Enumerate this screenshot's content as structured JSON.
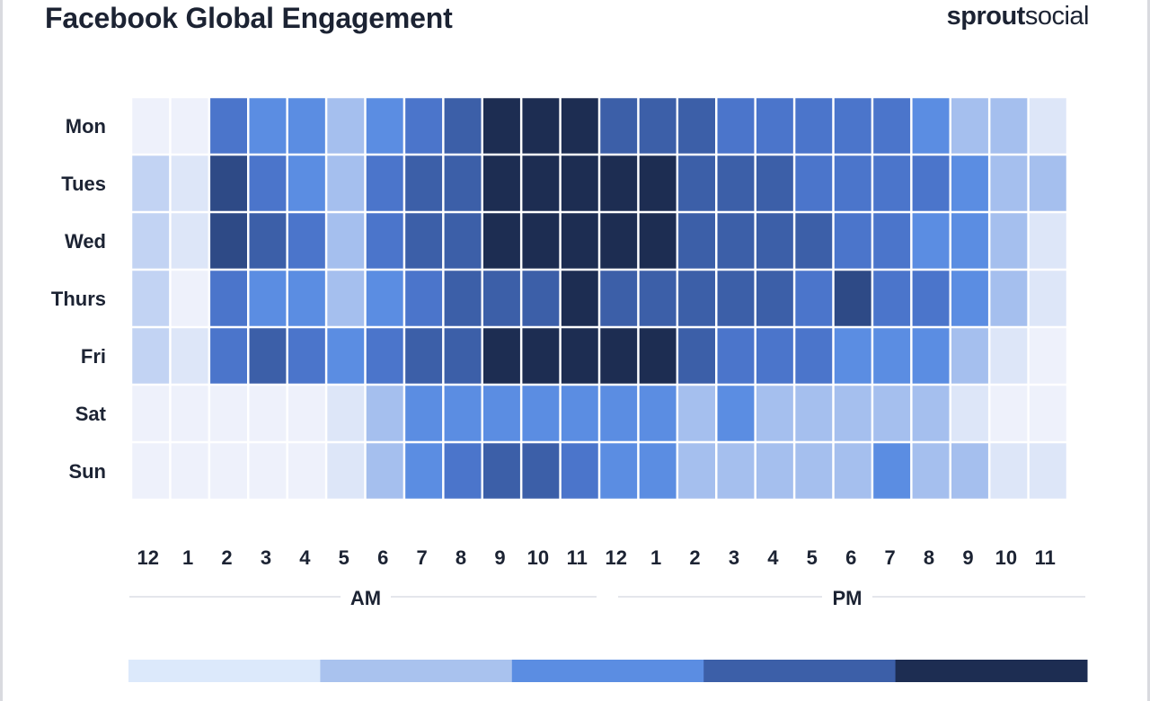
{
  "title": "Facebook Global Engagement",
  "brand": {
    "bold": "sprout",
    "light": "social"
  },
  "chart_data": {
    "type": "heatmap",
    "title": "Facebook Global Engagement",
    "rows": [
      "Mon",
      "Tues",
      "Wed",
      "Thurs",
      "Fri",
      "Sat",
      "Sun"
    ],
    "columns": [
      "12",
      "1",
      "2",
      "3",
      "4",
      "5",
      "6",
      "7",
      "8",
      "9",
      "10",
      "11",
      "12",
      "1",
      "2",
      "3",
      "4",
      "5",
      "6",
      "7",
      "8",
      "9",
      "10",
      "11"
    ],
    "periods": [
      {
        "label": "AM",
        "start": 0,
        "end": 11
      },
      {
        "label": "PM",
        "start": 12,
        "end": 23
      }
    ],
    "scale": {
      "min": 0,
      "max": 8,
      "note": "relative engagement level, light to dark"
    },
    "palette": [
      {
        "stop": 0,
        "color": "#eef1fb"
      },
      {
        "stop": 1,
        "color": "#dde6f8"
      },
      {
        "stop": 2,
        "color": "#c2d3f3"
      },
      {
        "stop": 3,
        "color": "#a5bfee"
      },
      {
        "stop": 4,
        "color": "#5b8de2"
      },
      {
        "stop": 5,
        "color": "#4b75cb"
      },
      {
        "stop": 6,
        "color": "#3c5fa8"
      },
      {
        "stop": 7,
        "color": "#2e4a86"
      },
      {
        "stop": 8,
        "color": "#1d2d52"
      }
    ],
    "values": [
      [
        0,
        0,
        5,
        4,
        4,
        3,
        4,
        5,
        6,
        8,
        8,
        8,
        6,
        6,
        6,
        5,
        5,
        5,
        5,
        5,
        4,
        3,
        3,
        1
      ],
      [
        2,
        1,
        7,
        5,
        4,
        3,
        5,
        6,
        6,
        8,
        8,
        8,
        8,
        8,
        6,
        6,
        6,
        5,
        5,
        5,
        5,
        4,
        3,
        3
      ],
      [
        2,
        1,
        7,
        6,
        5,
        3,
        5,
        6,
        6,
        8,
        8,
        8,
        8,
        8,
        6,
        6,
        6,
        6,
        5,
        5,
        4,
        4,
        3,
        1
      ],
      [
        2,
        0,
        5,
        4,
        4,
        3,
        4,
        5,
        6,
        6,
        6,
        8,
        6,
        6,
        6,
        6,
        6,
        5,
        7,
        5,
        5,
        4,
        3,
        1
      ],
      [
        2,
        1,
        5,
        6,
        5,
        4,
        5,
        6,
        6,
        8,
        8,
        8,
        8,
        8,
        6,
        5,
        5,
        5,
        4,
        4,
        4,
        3,
        1,
        0
      ],
      [
        0,
        0,
        0,
        0,
        0,
        1,
        3,
        4,
        4,
        4,
        4,
        4,
        4,
        4,
        3,
        4,
        3,
        3,
        3,
        3,
        3,
        1,
        0,
        0
      ],
      [
        0,
        0,
        0,
        0,
        0,
        1,
        3,
        4,
        5,
        6,
        6,
        5,
        4,
        4,
        3,
        3,
        3,
        3,
        3,
        4,
        3,
        3,
        1,
        1
      ]
    ],
    "legend": {
      "position": "bottom",
      "colors": [
        "#dce9fb",
        "#a9c2ee",
        "#5b8de2",
        "#3c5fa8",
        "#1d2d52"
      ]
    }
  }
}
